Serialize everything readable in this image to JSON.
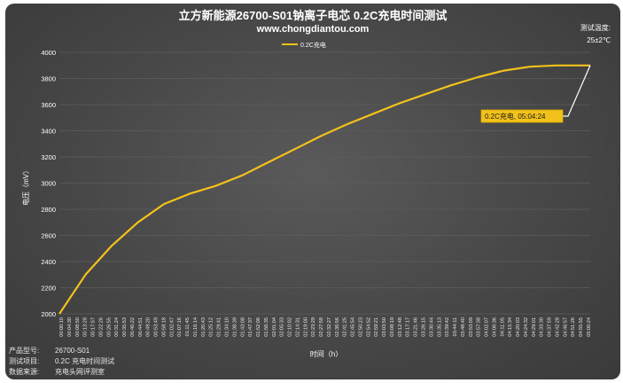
{
  "header": {
    "title": "立方新能源26700-S01钠离子电芯 0.2C充电时间测试",
    "website": "www.chongdiantou.com",
    "temp_label": "测试温度:",
    "temp_value": "25±2℃"
  },
  "footer": [
    {
      "key": "产品型号:",
      "value": "26700-S01"
    },
    {
      "key": "测试项目:",
      "value": "0.2C 充电时间测试"
    },
    {
      "key": "数据来源:",
      "value": "充电头网评测室"
    }
  ],
  "colors": {
    "line": "#f2c21b",
    "background": "#4a4a4a",
    "grid": "#5c5c5c",
    "text": "#ffffff"
  },
  "chart_data": {
    "type": "line",
    "title": "立方新能源26700-S01钠离子电芯 0.2C充电时间测试",
    "xlabel": "时间（h）",
    "ylabel": "电压（mV）",
    "ylim": [
      2000,
      4000
    ],
    "yticks": [
      2000,
      2200,
      2400,
      2600,
      2800,
      3000,
      3200,
      3400,
      3600,
      3800,
      4000
    ],
    "grid": true,
    "legend": "top-center",
    "series": [
      {
        "name": "0.2C充电",
        "x": [
          "00:00:00",
          "00:15:00",
          "00:30:00",
          "00:45:00",
          "01:00:00",
          "01:15:00",
          "01:30:00",
          "01:45:00",
          "02:00:00",
          "02:15:00",
          "02:30:00",
          "02:45:00",
          "03:00:00",
          "03:15:00",
          "03:30:00",
          "03:45:00",
          "04:00:00",
          "04:15:00",
          "04:30:00",
          "04:45:00",
          "04:49:00",
          "05:04:24"
        ],
        "y": [
          2000,
          2300,
          2520,
          2700,
          2840,
          2920,
          2980,
          3060,
          3160,
          3260,
          3360,
          3450,
          3530,
          3610,
          3680,
          3750,
          3810,
          3860,
          3890,
          3900,
          3900,
          3900
        ]
      }
    ],
    "x_tick_labels": [
      "00:00:10",
      "00:04:30",
      "00:08:50",
      "00:13:28",
      "00:17:57",
      "00:22:26",
      "00:26:55",
      "00:31:24",
      "00:35:53",
      "00:40:22",
      "00:44:51",
      "00:49:20",
      "00:53:49",
      "00:58:18",
      "01:02:47",
      "01:07:16",
      "01:11:45",
      "01:16:14",
      "01:20:43",
      "01:25:12",
      "01:29:41",
      "01:34:10",
      "01:38:39",
      "01:43:08",
      "01:47:37",
      "01:52:06",
      "01:56:35",
      "02:01:04",
      "02:05:33",
      "02:10:02",
      "02:14:31",
      "02:19:00",
      "02:23:29",
      "02:27:58",
      "02:32:27",
      "02:36:56",
      "02:41:25",
      "02:45:54",
      "02:50:23",
      "02:54:52",
      "02:59:21",
      "03:03:50",
      "03:08:19",
      "03:12:48",
      "03:17:17",
      "03:21:46",
      "03:26:15",
      "03:30:44",
      "03:35:13",
      "03:39:42",
      "03:44:11",
      "03:48:40",
      "03:53:09",
      "03:57:38",
      "04:02:07",
      "04:06:36",
      "04:11:05",
      "04:15:34",
      "04:20:03",
      "04:24:32",
      "04:29:01",
      "04:33:30",
      "04:37:59",
      "04:42:28",
      "04:46:57",
      "04:51:26",
      "04:55:55",
      "05:00:24"
    ],
    "annotation": {
      "text": "0.2C充电, 05:04:24",
      "x": "05:04:24",
      "y": 3900
    }
  }
}
